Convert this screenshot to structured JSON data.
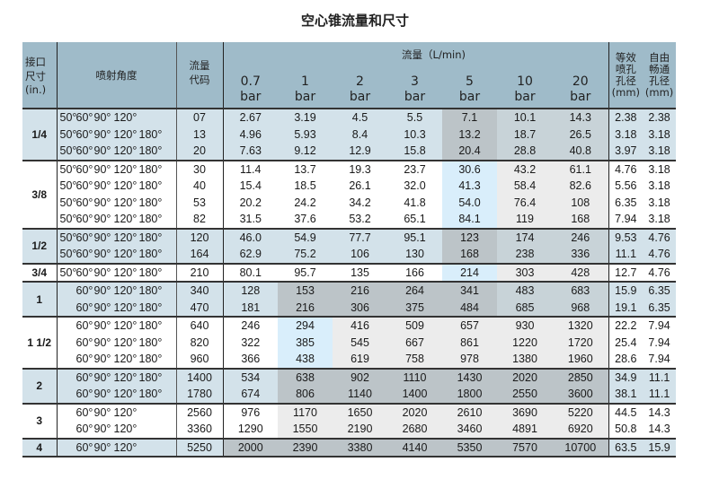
{
  "title": "空心锥流量和尺寸",
  "header": {
    "size": "接口\n尺寸\n(in.)",
    "size_lines": [
      "接口",
      "尺寸",
      "(in.)"
    ],
    "angles": "喷射角度",
    "code_lines": [
      "流量",
      "代码"
    ],
    "flow": "流量（L/min)",
    "pressures": [
      [
        "0.7",
        "bar"
      ],
      [
        "1",
        "bar"
      ],
      [
        "2",
        "bar"
      ],
      [
        "3",
        "bar"
      ],
      [
        "5",
        "bar"
      ],
      [
        "10",
        "bar"
      ],
      [
        "20",
        "bar"
      ]
    ],
    "eq_lines": [
      "等效",
      "喷孔",
      "孔径",
      "(mm)"
    ],
    "free_lines": [
      "自由",
      "畅通",
      "孔径",
      "(mm)"
    ]
  },
  "groups": [
    {
      "size": "1/4",
      "rows": [
        {
          "angles": [
            "50°",
            "60°",
            "90°",
            "120°",
            ""
          ],
          "code": "07",
          "flows": [
            "2.67",
            "3.19",
            "4.5",
            "5.5",
            "7.1",
            "10.1",
            "14.3"
          ],
          "eq": "2.38",
          "free": "2.38"
        },
        {
          "angles": [
            "50°",
            "60°",
            "90°",
            "120°",
            "180°"
          ],
          "code": "13",
          "flows": [
            "4.96",
            "5.93",
            "8.4",
            "10.3",
            "13.2",
            "18.7",
            "26.5"
          ],
          "eq": "3.18",
          "free": "3.18"
        },
        {
          "angles": [
            "50°",
            "60°",
            "90°",
            "120°",
            "180°"
          ],
          "code": "20",
          "flows": [
            "7.63",
            "9.12",
            "12.9",
            "15.8",
            "20.4",
            "28.8",
            "40.8"
          ],
          "eq": "3.97",
          "free": "3.18"
        }
      ]
    },
    {
      "size": "3/8",
      "rows": [
        {
          "angles": [
            "50°",
            "60°",
            "90°",
            "120°",
            "180°"
          ],
          "code": "30",
          "flows": [
            "11.4",
            "13.7",
            "19.3",
            "23.7",
            "30.6",
            "43.2",
            "61.1"
          ],
          "eq": "4.76",
          "free": "3.18"
        },
        {
          "angles": [
            "50°",
            "60°",
            "90°",
            "120°",
            "180°"
          ],
          "code": "40",
          "flows": [
            "15.4",
            "18.5",
            "26.1",
            "32.0",
            "41.3",
            "58.4",
            "82.6"
          ],
          "eq": "5.56",
          "free": "3.18"
        },
        {
          "angles": [
            "50°",
            "60°",
            "90°",
            "120°",
            "180°"
          ],
          "code": "53",
          "flows": [
            "20.2",
            "24.2",
            "34.2",
            "41.8",
            "54.0",
            "76.4",
            "108"
          ],
          "eq": "6.35",
          "free": "3.18"
        },
        {
          "angles": [
            "50°",
            "60°",
            "90°",
            "120°",
            "180°"
          ],
          "code": "82",
          "flows": [
            "31.5",
            "37.6",
            "53.2",
            "65.1",
            "84.1",
            "119",
            "168"
          ],
          "eq": "7.94",
          "free": "3.18"
        }
      ]
    },
    {
      "size": "1/2",
      "rows": [
        {
          "angles": [
            "50°",
            "60°",
            "90°",
            "120°",
            "180°"
          ],
          "code": "120",
          "flows": [
            "46.0",
            "54.9",
            "77.7",
            "95.1",
            "123",
            "174",
            "246"
          ],
          "eq": "9.53",
          "free": "4.76"
        },
        {
          "angles": [
            "50°",
            "60°",
            "90°",
            "120°",
            "180°"
          ],
          "code": "164",
          "flows": [
            "62.9",
            "75.2",
            "106",
            "130",
            "168",
            "238",
            "336"
          ],
          "eq": "11.1",
          "free": "4.76"
        }
      ]
    },
    {
      "size": "3/4",
      "rows": [
        {
          "angles": [
            "50°",
            "60°",
            "90°",
            "120°",
            "180°"
          ],
          "code": "210",
          "flows": [
            "80.1",
            "95.7",
            "135",
            "166",
            "214",
            "303",
            "428"
          ],
          "eq": "12.7",
          "free": "4.76"
        }
      ]
    },
    {
      "size": "1",
      "rows": [
        {
          "angles": [
            "",
            "60°",
            "90°",
            "120°",
            "180°"
          ],
          "code": "340",
          "flows": [
            "128",
            "153",
            "216",
            "264",
            "341",
            "483",
            "683"
          ],
          "eq": "15.9",
          "free": "6.35"
        },
        {
          "angles": [
            "",
            "60°",
            "90°",
            "120°",
            "180°"
          ],
          "code": "470",
          "flows": [
            "181",
            "216",
            "306",
            "375",
            "484",
            "685",
            "968"
          ],
          "eq": "19.1",
          "free": "6.35"
        }
      ]
    },
    {
      "size": "1 1/2",
      "rows": [
        {
          "angles": [
            "",
            "60°",
            "90°",
            "120°",
            "180°"
          ],
          "code": "640",
          "flows": [
            "246",
            "294",
            "416",
            "509",
            "657",
            "930",
            "1320"
          ],
          "eq": "22.2",
          "free": "7.94"
        },
        {
          "angles": [
            "",
            "60°",
            "90°",
            "120°",
            "180°"
          ],
          "code": "820",
          "flows": [
            "322",
            "385",
            "545",
            "667",
            "861",
            "1220",
            "1720"
          ],
          "eq": "25.4",
          "free": "7.94"
        },
        {
          "angles": [
            "",
            "60°",
            "90°",
            "120°",
            "180°"
          ],
          "code": "960",
          "flows": [
            "366",
            "438",
            "619",
            "758",
            "978",
            "1380",
            "1960"
          ],
          "eq": "28.6",
          "free": "7.94"
        }
      ]
    },
    {
      "size": "2",
      "rows": [
        {
          "angles": [
            "",
            "60°",
            "90°",
            "120°",
            "180°"
          ],
          "code": "1400",
          "flows": [
            "534",
            "638",
            "902",
            "1110",
            "1430",
            "2020",
            "2850"
          ],
          "eq": "34.9",
          "free": "11.1"
        },
        {
          "angles": [
            "",
            "60°",
            "90°",
            "120°",
            "180°"
          ],
          "code": "1780",
          "flows": [
            "674",
            "806",
            "1140",
            "1400",
            "1800",
            "2550",
            "3600"
          ],
          "eq": "38.1",
          "free": "11.1"
        }
      ]
    },
    {
      "size": "3",
      "rows": [
        {
          "angles": [
            "",
            "60°",
            "90°",
            "120°",
            ""
          ],
          "code": "2560",
          "flows": [
            "976",
            "1170",
            "1650",
            "2020",
            "2610",
            "3690",
            "5220"
          ],
          "eq": "44.5",
          "free": "14.3"
        },
        {
          "angles": [
            "",
            "60°",
            "90°",
            "120°",
            ""
          ],
          "code": "3360",
          "flows": [
            "1290",
            "1550",
            "2190",
            "2680",
            "3460",
            "4891",
            "6920"
          ],
          "eq": "50.8",
          "free": "14.3"
        }
      ]
    },
    {
      "size": "4",
      "rows": [
        {
          "angles": [
            "",
            "60°",
            "90°",
            "120°",
            ""
          ],
          "code": "5250",
          "flows": [
            "2000",
            "2390",
            "3380",
            "4140",
            "5350",
            "7570",
            "10700"
          ],
          "eq": "63.5",
          "free": "15.9"
        }
      ]
    }
  ],
  "colors": {
    "header": "#9fbbc9",
    "row_blue": "#d3e2ea",
    "dark_grey": "#bcc4c8",
    "blue_grey": "#c8d3d8",
    "light_blue": "#d9eefb",
    "light_grey": "#ececec"
  }
}
